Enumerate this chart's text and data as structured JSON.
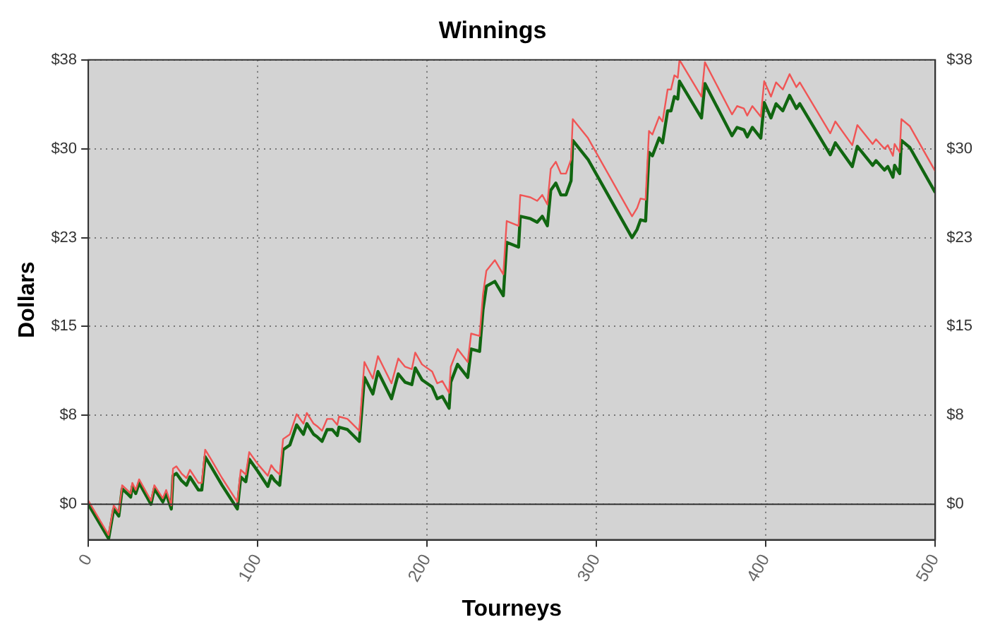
{
  "chart_data": {
    "type": "line",
    "title": "Winnings",
    "xlabel": "Tourneys",
    "ylabel": "Dollars",
    "x": [
      0,
      12,
      15,
      18,
      20,
      23,
      25,
      26,
      28,
      30,
      37,
      39,
      44,
      46,
      49,
      50,
      52,
      55,
      58,
      60,
      65,
      67,
      69,
      72,
      79,
      88,
      90,
      93,
      95,
      100,
      106,
      108,
      110,
      113,
      115,
      119,
      123,
      127,
      129,
      133,
      135,
      138,
      141,
      144,
      147,
      148,
      153,
      160,
      163,
      168,
      171,
      179,
      183,
      187,
      191,
      193,
      197,
      203,
      206,
      209,
      213,
      214,
      218,
      224,
      226,
      231,
      233,
      235,
      240,
      245,
      247,
      254,
      255,
      261,
      265,
      268,
      271,
      273,
      276,
      279,
      282,
      285,
      286,
      295,
      321,
      324,
      326,
      329,
      331,
      333,
      337,
      339,
      342,
      344,
      346,
      348,
      349,
      362,
      364,
      380,
      383,
      387,
      389,
      392,
      397,
      399,
      403,
      406,
      410,
      414,
      418,
      420,
      438,
      441,
      451,
      454,
      463,
      465,
      470,
      472,
      475,
      476,
      479,
      480,
      485,
      500
    ],
    "series": [
      {
        "color": "#f05555",
        "values": [
          0.3,
          -2.6,
          -0.1,
          -0.7,
          1.6,
          1.2,
          0.9,
          1.8,
          1.2,
          2.1,
          0.3,
          1.6,
          0.5,
          1.2,
          -0.1,
          3.0,
          3.2,
          2.6,
          2.2,
          2.9,
          1.8,
          1.8,
          4.6,
          3.9,
          2.2,
          0.2,
          2.9,
          2.5,
          4.4,
          3.4,
          2.4,
          3.3,
          2.9,
          2.5,
          5.5,
          5.9,
          7.6,
          6.8,
          7.7,
          6.8,
          6.6,
          6.2,
          7.2,
          7.2,
          6.7,
          7.4,
          7.2,
          6.2,
          12.0,
          10.6,
          12.5,
          10.2,
          12.3,
          11.6,
          11.4,
          12.8,
          11.8,
          11.2,
          10.2,
          10.4,
          9.4,
          11.6,
          13.1,
          12.0,
          14.4,
          14.2,
          17.7,
          19.7,
          20.6,
          19.4,
          23.9,
          23.5,
          26.1,
          25.9,
          25.6,
          26.1,
          25.3,
          28.3,
          28.9,
          27.9,
          27.9,
          29.1,
          32.5,
          30.9,
          24.3,
          25.0,
          25.8,
          25.7,
          31.5,
          31.2,
          32.7,
          32.3,
          35.0,
          35.0,
          36.2,
          36.0,
          37.5,
          34.4,
          37.3,
          32.9,
          33.6,
          33.4,
          32.8,
          33.6,
          32.7,
          35.7,
          34.4,
          35.6,
          35.0,
          36.3,
          35.2,
          35.6,
          31.3,
          32.3,
          30.3,
          32.0,
          30.4,
          30.8,
          30.0,
          30.3,
          29.4,
          30.4,
          29.7,
          32.5,
          31.9,
          28.1
        ]
      },
      {
        "color": "#116611",
        "values": [
          0,
          -2.9,
          -0.4,
          -1.0,
          1.3,
          0.9,
          0.6,
          1.5,
          0.9,
          1.8,
          0,
          1.3,
          0.2,
          0.9,
          -0.4,
          2.4,
          2.6,
          2.0,
          1.6,
          2.3,
          1.2,
          1.2,
          4.0,
          3.3,
          1.6,
          -0.4,
          2.3,
          1.9,
          3.8,
          2.8,
          1.5,
          2.4,
          2.0,
          1.6,
          4.6,
          5.0,
          6.7,
          5.9,
          6.8,
          5.9,
          5.7,
          5.3,
          6.3,
          6.3,
          5.8,
          6.5,
          6.3,
          5.3,
          10.7,
          9.3,
          11.2,
          8.9,
          11.0,
          10.3,
          10.1,
          11.5,
          10.5,
          9.9,
          8.9,
          9.1,
          8.1,
          10.3,
          11.8,
          10.7,
          13.1,
          12.9,
          16.4,
          18.4,
          18.8,
          17.6,
          22.1,
          21.7,
          24.3,
          24.1,
          23.8,
          24.3,
          23.5,
          26.5,
          27.1,
          26.1,
          26.1,
          27.3,
          30.7,
          29.1,
          22.5,
          23.2,
          24.0,
          23.9,
          29.7,
          29.4,
          30.9,
          30.5,
          33.2,
          33.2,
          34.4,
          34.2,
          35.7,
          32.6,
          35.5,
          31.1,
          31.8,
          31.6,
          31.0,
          31.8,
          30.9,
          33.9,
          32.6,
          33.8,
          33.2,
          34.5,
          33.4,
          33.8,
          29.5,
          30.5,
          28.5,
          30.2,
          28.6,
          29.0,
          28.2,
          28.5,
          27.6,
          28.6,
          27.9,
          30.7,
          30.1,
          26.3
        ]
      }
    ],
    "xlim": [
      0,
      500
    ],
    "xticks": [
      0,
      100,
      200,
      300,
      400,
      500
    ],
    "ylim": [
      -3,
      37.5
    ],
    "yticks": [
      {
        "value": 0,
        "label": "$0"
      },
      {
        "value": 7.5,
        "label": "$8"
      },
      {
        "value": 15,
        "label": "$15"
      },
      {
        "value": 22.5,
        "label": "$23"
      },
      {
        "value": 30,
        "label": "$30"
      },
      {
        "value": 37.5,
        "label": "$38"
      }
    ],
    "y2lim": [
      -3,
      37.5
    ],
    "y2ticks": [
      {
        "value": 0,
        "label": "$0"
      },
      {
        "value": 7.5,
        "label": "$8"
      },
      {
        "value": 15,
        "label": "$15"
      },
      {
        "value": 22.5,
        "label": "$23"
      },
      {
        "value": 30,
        "label": "$30"
      },
      {
        "value": 37.5,
        "label": "$38"
      }
    ],
    "ref_lines": [
      {
        "axis": "y",
        "value": 0,
        "color": "#333333"
      }
    ],
    "grid": true,
    "legend": false,
    "marker": "none",
    "line_style": "solid"
  }
}
